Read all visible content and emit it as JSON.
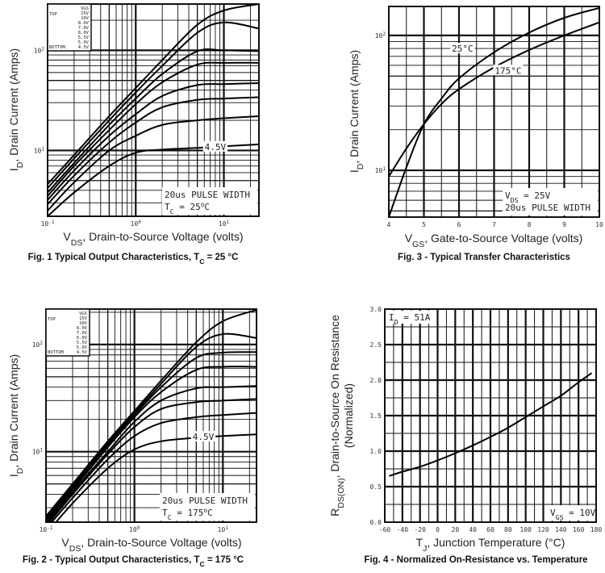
{
  "chart_data": [
    {
      "type": "line",
      "caption": [
        {
          "t": "Fig. 1 Typical Output Characteristics, T"
        },
        {
          "t": "C",
          "sub": true
        },
        {
          "t": " = 25 °C"
        }
      ],
      "xlabel": [
        {
          "t": "V"
        },
        {
          "t": "DS",
          "sub": true
        },
        {
          "t": ", Drain-to-Source Voltage (volts)"
        }
      ],
      "ylabel": [
        {
          "t": "I"
        },
        {
          "t": "D",
          "sub": true
        },
        {
          "t": ", Drain Current (Amps)"
        }
      ],
      "xscale": "log",
      "yscale": "log",
      "xlim": [
        0.1,
        25
      ],
      "ylim": [
        2.2,
        290
      ],
      "xticks": [
        {
          "v": 0.1,
          "base": "10",
          "exp": "-1"
        },
        {
          "v": 1,
          "base": "10",
          "exp": "0"
        },
        {
          "v": 10,
          "base": "10",
          "exp": "1"
        }
      ],
      "yticks": [
        {
          "v": 10,
          "base": "10",
          "exp": "1"
        },
        {
          "v": 100,
          "base": "10",
          "exp": "2"
        }
      ],
      "grid": true,
      "legend": {
        "placement": "top-left",
        "header": "VGS",
        "top_label": "TOP",
        "bottom_label": "BOTTOM",
        "values": [
          "15V",
          "10V",
          "8.0V",
          "7.0V",
          "6.0V",
          "5.5V",
          "5.0V",
          "4.5V"
        ]
      },
      "annotations": [
        {
          "text": "4.5V",
          "x": 8,
          "y": 10.9
        }
      ],
      "notes": [
        [
          {
            "t": "20us PULSE WIDTH"
          }
        ],
        [
          {
            "t": "T"
          },
          {
            "t": "C",
            "sub": true
          },
          {
            "t": " = 25"
          },
          {
            "t": "o",
            "sup": true
          },
          {
            "t": "C"
          }
        ]
      ],
      "x": [
        0.1,
        0.2,
        0.5,
        1,
        2,
        5,
        10,
        25
      ],
      "series": [
        {
          "name": "15V",
          "values": [
            4.6,
            9,
            22,
            42,
            80,
            180,
            250,
            290
          ]
        },
        {
          "name": "10V",
          "values": [
            4.2,
            8.3,
            20,
            38,
            70,
            150,
            190,
            165
          ]
        },
        {
          "name": "8.0V",
          "values": [
            3.8,
            7.5,
            18,
            33,
            58,
            98,
            100,
            98
          ]
        },
        {
          "name": "7.0V",
          "values": [
            3.5,
            7,
            16,
            29,
            48,
            72,
            75,
            75
          ]
        },
        {
          "name": "6.0V",
          "values": [
            3.2,
            6.3,
            14,
            23,
            35,
            45,
            46,
            47
          ]
        },
        {
          "name": "5.5V",
          "values": [
            2.9,
            5.6,
            12,
            19,
            27,
            32,
            33,
            34
          ]
        },
        {
          "name": "5.0V",
          "values": [
            2.5,
            4.8,
            10,
            14,
            18,
            20,
            21,
            22
          ]
        },
        {
          "name": "4.5V",
          "values": [
            2.2,
            3.8,
            7,
            9.5,
            10.2,
            10.6,
            11,
            11.5
          ]
        }
      ]
    },
    {
      "type": "line",
      "caption": [
        {
          "t": "Fig. 2 - Typical Output Characteristics, T"
        },
        {
          "t": "C",
          "sub": true
        },
        {
          "t": " = 175 °C"
        }
      ],
      "xlabel": [
        {
          "t": "V"
        },
        {
          "t": "DS",
          "sub": true
        },
        {
          "t": ", Drain-to-Source Voltage (volts)"
        }
      ],
      "ylabel": [
        {
          "t": "I"
        },
        {
          "t": "D",
          "sub": true
        },
        {
          "t": ", Drain Current (Amps)"
        }
      ],
      "xscale": "log",
      "yscale": "log",
      "xlim": [
        0.1,
        24
      ],
      "ylim": [
        2.2,
        214
      ],
      "xticks": [
        {
          "v": 0.1,
          "base": "10",
          "exp": "-1"
        },
        {
          "v": 1,
          "base": "10",
          "exp": "0"
        },
        {
          "v": 10,
          "base": "10",
          "exp": "1"
        }
      ],
      "yticks": [
        {
          "v": 10,
          "base": "10",
          "exp": "1"
        },
        {
          "v": 100,
          "base": "10",
          "exp": "2"
        }
      ],
      "grid": true,
      "legend": {
        "placement": "top-left",
        "header": "VGS",
        "top_label": "TOP",
        "bottom_label": "BOTTOM",
        "values": [
          "15V",
          "10V",
          "8.0V",
          "7.0V",
          "6.0V",
          "5.5V",
          "5.0V",
          "4.5V"
        ]
      },
      "annotations": [
        {
          "text": "4.5V",
          "x": 6,
          "y": 13.8
        }
      ],
      "notes": [
        [
          {
            "t": "20us PULSE WIDTH"
          }
        ],
        [
          {
            "t": "T"
          },
          {
            "t": "C",
            "sub": true
          },
          {
            "t": " = 175"
          },
          {
            "t": "o",
            "sup": true
          },
          {
            "t": "C"
          }
        ]
      ],
      "x": [
        0.1,
        0.2,
        0.5,
        1,
        2,
        5,
        10,
        24
      ],
      "series": [
        {
          "name": "15V",
          "values": [
            2.5,
            5,
            12.5,
            24,
            46,
            105,
            165,
            210
          ]
        },
        {
          "name": "10V",
          "values": [
            2.4,
            4.8,
            12,
            23,
            43,
            95,
            125,
            115
          ]
        },
        {
          "name": "8.0V",
          "values": [
            2.3,
            4.6,
            11.5,
            22,
            40,
            75,
            84,
            85
          ]
        },
        {
          "name": "7.0V",
          "values": [
            2.2,
            4.4,
            11,
            21,
            36,
            58,
            62,
            62
          ]
        },
        {
          "name": "6.0V",
          "values": [
            2.1,
            4.2,
            10,
            19,
            30,
            39,
            40,
            41
          ]
        },
        {
          "name": "5.5V",
          "values": [
            2.0,
            4,
            9.5,
            17,
            25,
            29,
            30,
            31
          ]
        },
        {
          "name": "5.0V",
          "values": [
            1.9,
            3.7,
            8.5,
            14,
            18.5,
            21,
            22,
            23
          ]
        },
        {
          "name": "4.5V",
          "values": [
            1.7,
            3.3,
            7,
            10.5,
            12.5,
            13.5,
            14,
            14.5
          ]
        }
      ]
    },
    {
      "type": "line",
      "caption": [
        {
          "t": "Fig. 3 - Typical Transfer Characteristics"
        }
      ],
      "xlabel": [
        {
          "t": "V"
        },
        {
          "t": "GS",
          "sub": true
        },
        {
          "t": ", Gate-to-Source Voltage (volts)"
        }
      ],
      "ylabel": [
        {
          "t": "I"
        },
        {
          "t": "D",
          "sub": true
        },
        {
          "t": ", Drain Current (Amps)"
        }
      ],
      "xscale": "linear",
      "yscale": "log",
      "xlim": [
        4,
        10
      ],
      "ylim": [
        4.5,
        164
      ],
      "xticks": [
        {
          "v": 4,
          "base": "4"
        },
        {
          "v": 5,
          "base": "5"
        },
        {
          "v": 6,
          "base": "6"
        },
        {
          "v": 7,
          "base": "7"
        },
        {
          "v": 8,
          "base": "8"
        },
        {
          "v": 9,
          "base": "9"
        },
        {
          "v": 10,
          "base": "10"
        }
      ],
      "yticks": [
        {
          "v": 10,
          "base": "10",
          "exp": "1"
        },
        {
          "v": 100,
          "base": "10",
          "exp": "2"
        }
      ],
      "grid": true,
      "annotations": [
        {
          "text": "25°C",
          "x": 6.1,
          "y": 80
        },
        {
          "text": "175°C",
          "x": 7.4,
          "y": 55
        }
      ],
      "notes": [
        [
          {
            "t": "V"
          },
          {
            "t": "DS",
            "sub": true
          },
          {
            "t": " = 25V"
          }
        ],
        [
          {
            "t": "20us PULSE WIDTH"
          }
        ]
      ],
      "x": [
        4,
        4.5,
        5,
        5.5,
        6,
        7,
        8,
        9,
        10
      ],
      "series": [
        {
          "name": "25°C",
          "values": [
            4.5,
            10.5,
            22,
            34,
            48,
            75,
            105,
            135,
            160
          ]
        },
        {
          "name": "175°C",
          "values": [
            9,
            14.5,
            22,
            31,
            40,
            58,
            78,
            100,
            125
          ]
        }
      ]
    },
    {
      "type": "line",
      "caption": [
        {
          "t": "Fig. 4 - Normalized On-Resistance vs. Temperature"
        }
      ],
      "xlabel": [
        {
          "t": "T"
        },
        {
          "t": "J",
          "sub": true
        },
        {
          "t": ", Junction Temperature (°C)"
        }
      ],
      "ylabel": [
        {
          "t": "R"
        },
        {
          "t": "DS(ON)",
          "sub": true
        },
        {
          "t": ", Drain-to-Source On Resistance"
        }
      ],
      "ylabel2": [
        {
          "t": "(Normalized)"
        }
      ],
      "xscale": "linear",
      "yscale": "linear",
      "xlim": [
        -60,
        180
      ],
      "ylim": [
        0,
        3.0
      ],
      "xticks": [
        {
          "v": -60,
          "base": "-60"
        },
        {
          "v": -40,
          "base": "-40"
        },
        {
          "v": -20,
          "base": "-20"
        },
        {
          "v": 0,
          "base": "0"
        },
        {
          "v": 20,
          "base": "20"
        },
        {
          "v": 40,
          "base": "40"
        },
        {
          "v": 60,
          "base": "60"
        },
        {
          "v": 80,
          "base": "80"
        },
        {
          "v": 100,
          "base": "100"
        },
        {
          "v": 120,
          "base": "120"
        },
        {
          "v": 140,
          "base": "140"
        },
        {
          "v": 160,
          "base": "160"
        },
        {
          "v": 180,
          "base": "180"
        }
      ],
      "yticks": [
        {
          "v": 0,
          "base": "0.0"
        },
        {
          "v": 0.5,
          "base": "0.5"
        },
        {
          "v": 1,
          "base": "1.0"
        },
        {
          "v": 1.5,
          "base": "1.5"
        },
        {
          "v": 2,
          "base": "2.0"
        },
        {
          "v": 2.5,
          "base": "2.5"
        },
        {
          "v": 3,
          "base": "3.0"
        }
      ],
      "grid": true,
      "notes_top": [
        [
          {
            "t": "I"
          },
          {
            "t": "D",
            "sub": true
          },
          {
            "t": " = 51A"
          }
        ]
      ],
      "notes": [
        [
          {
            "t": "V"
          },
          {
            "t": "GS",
            "sub": true
          },
          {
            "t": " = 10V"
          }
        ]
      ],
      "x": [
        -55,
        -40,
        -20,
        0,
        20,
        40,
        60,
        80,
        100,
        120,
        140,
        160,
        175
      ],
      "series": [
        {
          "values": [
            0.65,
            0.71,
            0.78,
            0.87,
            0.97,
            1.08,
            1.2,
            1.33,
            1.48,
            1.63,
            1.78,
            1.97,
            2.1
          ]
        }
      ]
    }
  ]
}
